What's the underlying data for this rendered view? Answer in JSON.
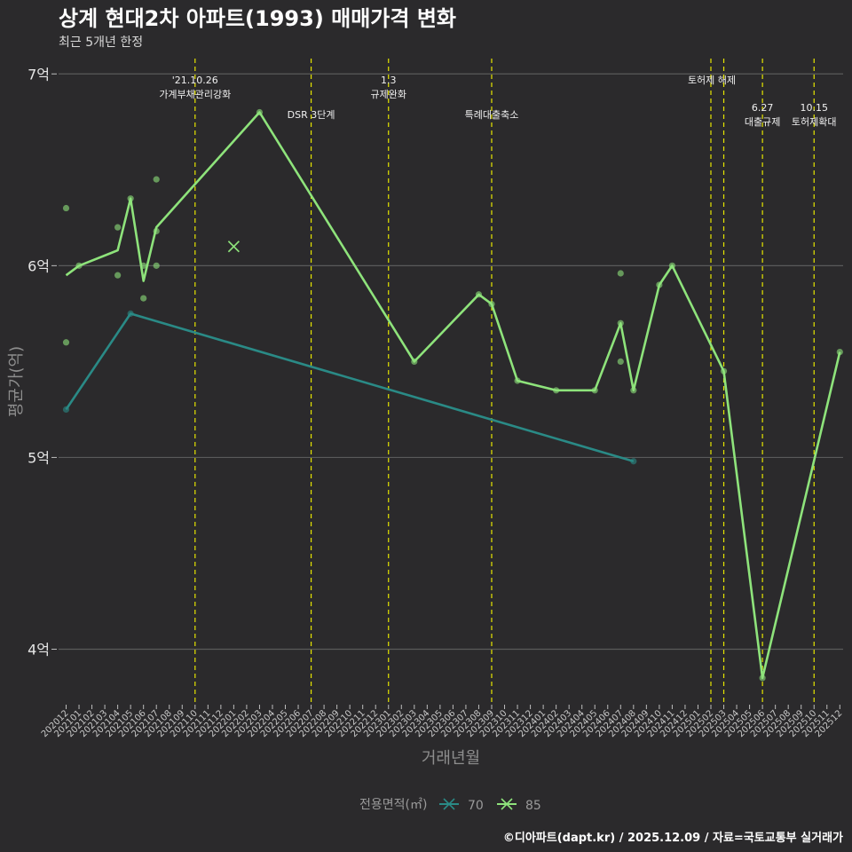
{
  "title": "상계 현대2차 아파트(1993) 매매가격 변화",
  "subtitle": "최근 5개년 한정",
  "caption": "©디아파트(dapt.kr) / 2025.12.09 / 자료=국토교통부 실거래가",
  "colors": {
    "background": "#2b2a2c",
    "grid": "#5a5a5a",
    "event_line": "#e6e600",
    "series_70": "#2a8a86",
    "series_85": "#8ee37b"
  },
  "chart_data": {
    "type": "line",
    "xlabel": "거래년월",
    "ylabel": "평균가(억)",
    "ylim": [
      3.72,
      7.08
    ],
    "ytick_values": [
      4,
      5,
      6,
      7
    ],
    "ytick_labels": [
      "4억",
      "5억",
      "6억",
      "7억"
    ],
    "months": [
      "202012",
      "202101",
      "202102",
      "202103",
      "202104",
      "202105",
      "202106",
      "202107",
      "202108",
      "202109",
      "202110",
      "202111",
      "202112",
      "202201",
      "202202",
      "202203",
      "202204",
      "202205",
      "202206",
      "202207",
      "202208",
      "202209",
      "202210",
      "202211",
      "202212",
      "202301",
      "202302",
      "202303",
      "202304",
      "202305",
      "202306",
      "202307",
      "202308",
      "202309",
      "202310",
      "202311",
      "202312",
      "202401",
      "202402",
      "202403",
      "202404",
      "202405",
      "202406",
      "202407",
      "202408",
      "202409",
      "202410",
      "202411",
      "202412",
      "202501",
      "202502",
      "202503",
      "202504",
      "202505",
      "202506",
      "202507",
      "202508",
      "202509",
      "202510",
      "202511",
      "202512"
    ],
    "legend_title": "전용면적(㎡)",
    "series": [
      {
        "name": "70",
        "color_key": "series_70",
        "line": [
          [
            "202012",
            5.25
          ],
          [
            "202105",
            5.75
          ],
          [
            "202408",
            4.98
          ]
        ],
        "points": [
          [
            "202012",
            5.25
          ],
          [
            "202105",
            5.75
          ],
          [
            "202408",
            4.98
          ]
        ]
      },
      {
        "name": "85",
        "color_key": "series_85",
        "line": [
          [
            "202012",
            5.95
          ],
          [
            "202101",
            6.0
          ],
          [
            "202104",
            6.08
          ],
          [
            "202105",
            6.35
          ],
          [
            "202106",
            5.92
          ],
          [
            "202107",
            6.2
          ],
          [
            "202203",
            6.8
          ],
          [
            "202303",
            5.5
          ],
          [
            "202308",
            5.85
          ],
          [
            "202309",
            5.8
          ],
          [
            "202311",
            5.4
          ],
          [
            "202402",
            5.35
          ],
          [
            "202405",
            5.35
          ],
          [
            "202407",
            5.7
          ],
          [
            "202408",
            5.35
          ],
          [
            "202410",
            5.9
          ],
          [
            "202411",
            6.0
          ],
          [
            "202503",
            5.45
          ],
          [
            "202506",
            3.85
          ],
          [
            "202512",
            5.55
          ]
        ],
        "points": [
          [
            "202012",
            6.3
          ],
          [
            "202012",
            5.6
          ],
          [
            "202101",
            6.0
          ],
          [
            "202104",
            6.2
          ],
          [
            "202104",
            5.95
          ],
          [
            "202105",
            6.35
          ],
          [
            "202106",
            6.0
          ],
          [
            "202106",
            5.83
          ],
          [
            "202107",
            6.45
          ],
          [
            "202107",
            6.18
          ],
          [
            "202107",
            6.0
          ],
          [
            "202203",
            6.8
          ],
          [
            "202303",
            5.5
          ],
          [
            "202308",
            5.85
          ],
          [
            "202309",
            5.8
          ],
          [
            "202311",
            5.4
          ],
          [
            "202402",
            5.35
          ],
          [
            "202405",
            5.35
          ],
          [
            "202407",
            5.96
          ],
          [
            "202407",
            5.7
          ],
          [
            "202407",
            5.5
          ],
          [
            "202408",
            5.35
          ],
          [
            "202410",
            5.9
          ],
          [
            "202411",
            6.0
          ],
          [
            "202503",
            5.45
          ],
          [
            "202506",
            3.85
          ],
          [
            "202512",
            5.55
          ]
        ],
        "cross_points": [
          [
            "202201",
            6.1
          ]
        ]
      }
    ],
    "events": [
      {
        "month": "202110",
        "lines": [
          "'21.10.26",
          "가계부채관리강화"
        ],
        "level": 1
      },
      {
        "month": "202207",
        "lines": [
          "DSR 3단계"
        ],
        "level": 2
      },
      {
        "month": "202301",
        "lines": [
          "1.3",
          "규제완화"
        ],
        "level": 1
      },
      {
        "month": "202309",
        "lines": [
          "특례대출축소"
        ],
        "level": 2
      },
      {
        "month": "202502",
        "lines": [
          "토허제 해제"
        ],
        "level": 1,
        "anchor": "end-right"
      },
      {
        "month": "202503",
        "lines": [],
        "level": 1
      },
      {
        "month": "202506",
        "lines": [
          "6.27",
          "대출규제"
        ],
        "level": 3
      },
      {
        "month": "202510",
        "lines": [
          "10.15",
          "토허제확대"
        ],
        "level": 3
      }
    ]
  }
}
